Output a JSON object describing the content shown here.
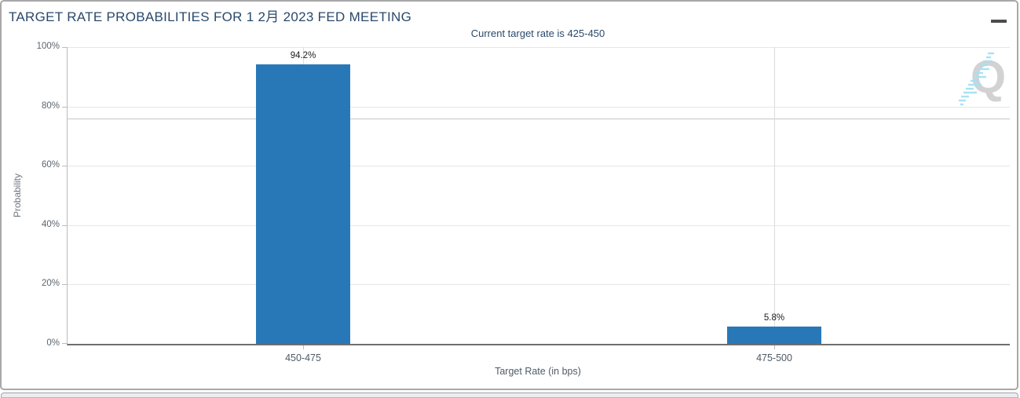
{
  "chart_data": {
    "type": "bar",
    "title": "TARGET RATE PROBABILITIES FOR 1 2月 2023 FED MEETING",
    "subtitle": "Current target rate is 425-450",
    "categories": [
      "450-475",
      "475-500"
    ],
    "values": [
      94.2,
      5.8
    ],
    "data_labels": [
      "94.2%",
      "5.8%"
    ],
    "xlabel": "Target Rate (in bps)",
    "ylabel": "Probability",
    "ylim": [
      0,
      100
    ],
    "ytick_labels": [
      "0%",
      "20%",
      "40%",
      "60%",
      "80%",
      "100%"
    ],
    "grid": true,
    "legend": "none",
    "reference_line_y": 76,
    "bar_color": "#2878b8",
    "watermark_letter": "Q",
    "menu_icon": "hamburger-menu-icon"
  }
}
